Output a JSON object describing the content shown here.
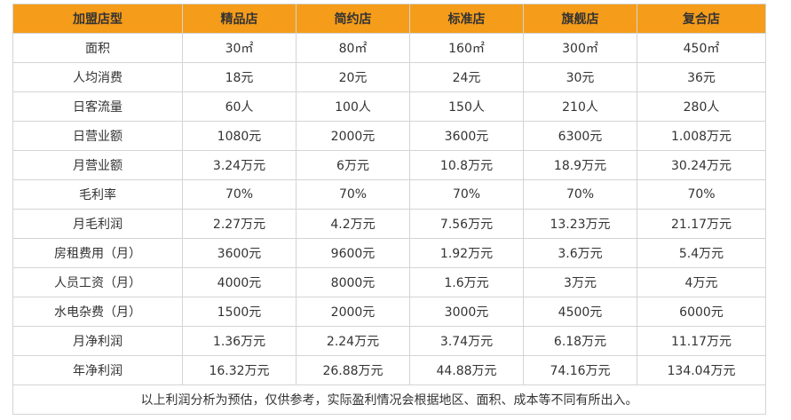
{
  "table": {
    "headers": [
      "加盟店型",
      "精品店",
      "简约店",
      "标准店",
      "旗舰店",
      "复合店"
    ],
    "rows": [
      [
        "面积",
        "30㎡",
        "80㎡",
        "160㎡",
        "300㎡",
        "450㎡"
      ],
      [
        "人均消费",
        "18元",
        "20元",
        "24元",
        "30元",
        "36元"
      ],
      [
        "日客流量",
        "60人",
        "100人",
        "150人",
        "210人",
        "280人"
      ],
      [
        "日营业额",
        "1080元",
        "2000元",
        "3600元",
        "6300元",
        "1.008万元"
      ],
      [
        "月营业额",
        "3.24万元",
        "6万元",
        "10.8万元",
        "18.9万元",
        "30.24万元"
      ],
      [
        "毛利率",
        "70%",
        "70%",
        "70%",
        "70%",
        "70%"
      ],
      [
        "月毛利润",
        "2.27万元",
        "4.2万元",
        "7.56万元",
        "13.23万元",
        "21.17万元"
      ],
      [
        "房租费用（月）",
        "3600元",
        "9600元",
        "1.92万元",
        "3.6万元",
        "5.4万元"
      ],
      [
        "人员工资（月）",
        "4000元",
        "8000元",
        "1.6万元",
        "3万元",
        "4万元"
      ],
      [
        "水电杂费（月）",
        "1500元",
        "2000元",
        "3000元",
        "4500元",
        "6000元"
      ],
      [
        "月净利润",
        "1.36万元",
        "2.24万元",
        "3.74万元",
        "6.18万元",
        "11.17万元"
      ],
      [
        "年净利润",
        "16.32万元",
        "26.88万元",
        "44.88万元",
        "74.16万元",
        "134.04万元"
      ]
    ],
    "note": "以上利润分析为预估，仅供参考，实际盈利情况会根据地区、面积、成本等不同有所出入。"
  },
  "colors": {
    "header_bg": "#f59c1a",
    "border": "#d4d4d4",
    "text": "#333333"
  }
}
